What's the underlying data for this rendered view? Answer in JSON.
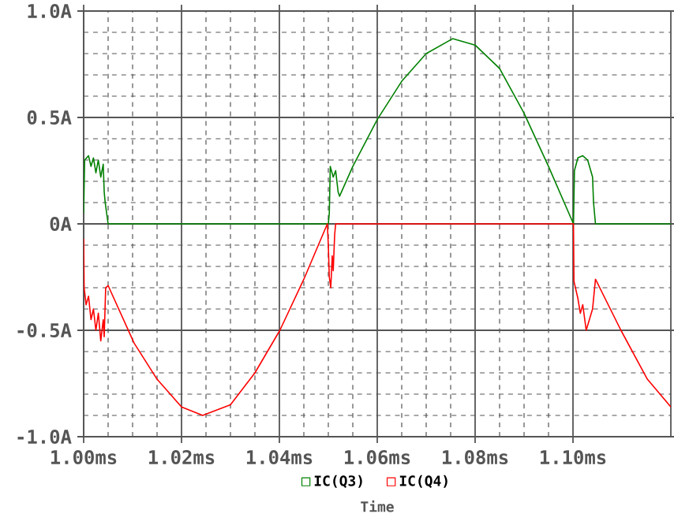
{
  "chart_data": {
    "type": "line",
    "xlabel": "Time",
    "xlim": [
      1.0,
      1.12
    ],
    "ylim": [
      -1.0,
      1.0
    ],
    "xticks": [
      {
        "value": 1.0,
        "label": "1.00ms"
      },
      {
        "value": 1.02,
        "label": "1.02ms"
      },
      {
        "value": 1.04,
        "label": "1.04ms"
      },
      {
        "value": 1.06,
        "label": "1.06ms"
      },
      {
        "value": 1.08,
        "label": "1.08ms"
      },
      {
        "value": 1.1,
        "label": "1.10ms"
      }
    ],
    "yticks": [
      {
        "value": -1.0,
        "label": "-1.0A"
      },
      {
        "value": -0.5,
        "label": "-0.5A"
      },
      {
        "value": 0,
        "label": "0A"
      },
      {
        "value": 0.5,
        "label": "0.5A"
      },
      {
        "value": 1.0,
        "label": "1.0A"
      }
    ],
    "grid": true,
    "legend": "bottom",
    "series": [
      {
        "name": "IC(Q3)",
        "color": "#008000",
        "x": [
          1.0,
          1.0002,
          1.001,
          1.0015,
          1.002,
          1.0025,
          1.003,
          1.0035,
          1.004,
          1.0042,
          1.0044,
          1.005,
          1.05,
          1.0502,
          1.0504,
          1.051,
          1.0515,
          1.052,
          1.0523,
          1.055,
          1.06,
          1.065,
          1.07,
          1.0754,
          1.08,
          1.085,
          1.09,
          1.095,
          1.1001,
          1.1003,
          1.101,
          1.102,
          1.103,
          1.104,
          1.1042,
          1.1046,
          1.12
        ],
        "values": [
          0.05,
          0.3,
          0.32,
          0.27,
          0.31,
          0.24,
          0.3,
          0.22,
          0.28,
          0.15,
          0.1,
          0.0,
          0.0,
          0.05,
          0.27,
          0.22,
          0.25,
          0.15,
          0.13,
          0.27,
          0.49,
          0.67,
          0.8,
          0.87,
          0.84,
          0.73,
          0.52,
          0.27,
          0.0,
          0.25,
          0.31,
          0.32,
          0.3,
          0.22,
          0.1,
          0.0,
          0.0
        ]
      },
      {
        "name": "IC(Q4)",
        "color": "#ff0000",
        "x": [
          1.0,
          1.0001,
          1.0005,
          1.001,
          1.0015,
          1.002,
          1.0025,
          1.003,
          1.0035,
          1.004,
          1.0042,
          1.0045,
          1.005,
          1.0103,
          1.015,
          1.02,
          1.0243,
          1.03,
          1.035,
          1.0401,
          1.045,
          1.0498,
          1.05,
          1.0502,
          1.0505,
          1.0508,
          1.051,
          1.0513,
          1.0515,
          1.1001,
          1.1002,
          1.101,
          1.1015,
          1.102,
          1.1027,
          1.104,
          1.1046,
          1.1098,
          1.1152,
          1.12
        ],
        "values": [
          -0.07,
          -0.3,
          -0.38,
          -0.34,
          -0.45,
          -0.4,
          -0.5,
          -0.42,
          -0.55,
          -0.45,
          -0.53,
          -0.3,
          -0.29,
          -0.56,
          -0.73,
          -0.86,
          -0.9,
          -0.85,
          -0.7,
          -0.5,
          -0.26,
          0.0,
          -0.1,
          -0.25,
          -0.3,
          -0.15,
          -0.22,
          -0.05,
          0.0,
          0.0,
          -0.27,
          -0.35,
          -0.42,
          -0.38,
          -0.5,
          -0.4,
          -0.26,
          -0.5,
          -0.73,
          -0.86
        ]
      }
    ]
  }
}
